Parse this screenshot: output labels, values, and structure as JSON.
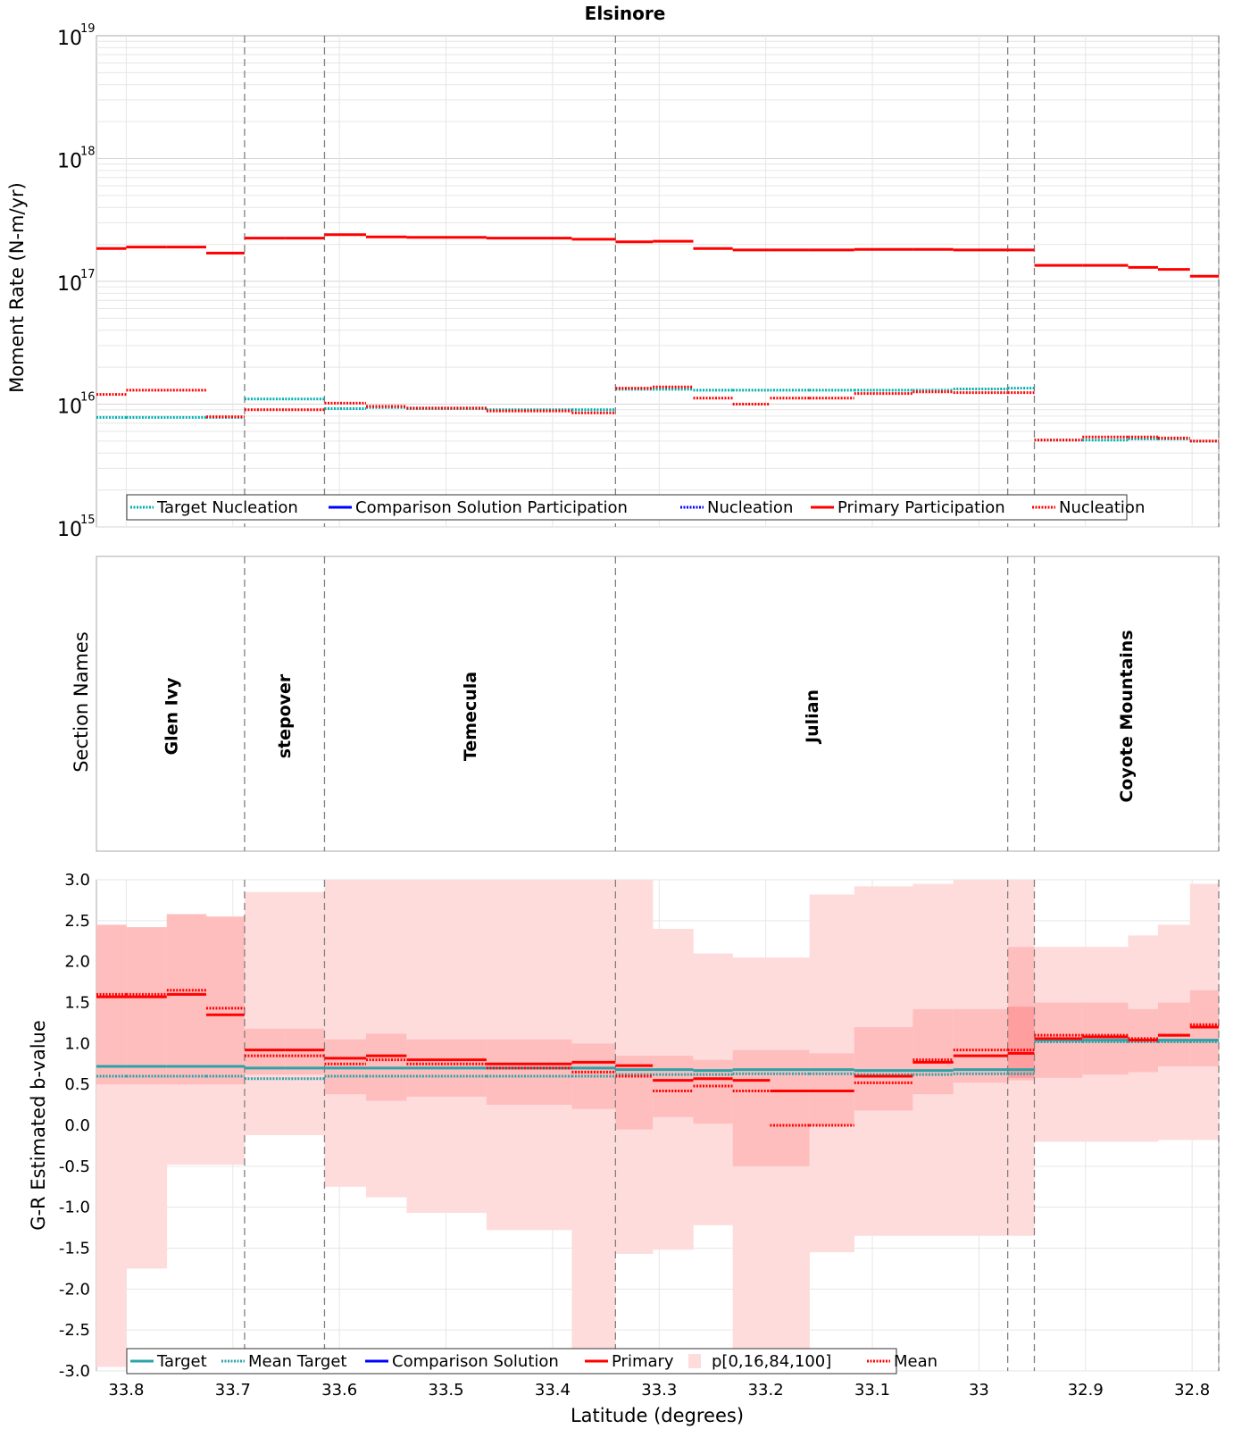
{
  "chart_data": [
    {
      "id": "moment",
      "type": "line",
      "title": "Elsinore",
      "ylabel": "Moment Rate (N-m/yr)",
      "yscale": "log",
      "ylim": [
        1000000000000000.0,
        1e+19
      ],
      "xlim": [
        33.828,
        32.775
      ],
      "y_ticks": [
        {
          "base": "10",
          "exp": "15",
          "value": 1000000000000000.0
        },
        {
          "base": "10",
          "exp": "16",
          "value": 1e+16
        },
        {
          "base": "10",
          "exp": "17",
          "value": 1e+17
        },
        {
          "base": "10",
          "exp": "18",
          "value": 1e+18
        },
        {
          "base": "10",
          "exp": "19",
          "value": 1e+19
        }
      ],
      "bin_edges": [
        33.828,
        33.8,
        33.762,
        33.725,
        33.689,
        33.651,
        33.614,
        33.575,
        33.537,
        33.462,
        33.382,
        33.341,
        33.306,
        33.268,
        33.231,
        33.196,
        33.159,
        33.117,
        33.062,
        33.024,
        32.973,
        32.948,
        32.903,
        32.86,
        32.832,
        32.802,
        32.775
      ],
      "series": [
        {
          "name": "Target Nucleation",
          "color": "#00b0b0",
          "style": "dotted",
          "values": [
            7800000000000000.0,
            7800000000000000.0,
            7800000000000000.0,
            7800000000000000.0,
            1.1e+16,
            1.1e+16,
            9200000000000000.0,
            9400000000000000.0,
            9200000000000000.0,
            9000000000000000.0,
            9000000000000000.0,
            1.32e+16,
            1.32e+16,
            1.3e+16,
            1.3e+16,
            1.3e+16,
            1.3e+16,
            1.3e+16,
            1.3e+16,
            1.33e+16,
            1.35e+16,
            5100000000000000.0,
            5100000000000000.0,
            5200000000000000.0,
            5200000000000000.0,
            5000000000000000.0
          ]
        },
        {
          "name": "Primary Participation",
          "color": "#ff0000",
          "style": "solid",
          "values": [
            1.85e+17,
            1.9e+17,
            1.9e+17,
            1.7e+17,
            2.25e+17,
            2.25e+17,
            2.4e+17,
            2.3e+17,
            2.28e+17,
            2.25e+17,
            2.2e+17,
            2.1e+17,
            2.12e+17,
            1.85e+17,
            1.8e+17,
            1.8e+17,
            1.8e+17,
            1.82e+17,
            1.82e+17,
            1.8e+17,
            1.8e+17,
            1.35e+17,
            1.35e+17,
            1.3e+17,
            1.25e+17,
            1.1e+17
          ]
        },
        {
          "name": "Nucleation",
          "color": "#ff0000",
          "style": "dotted",
          "values": [
            1.2e+16,
            1.3e+16,
            1.3e+16,
            7900000000000000.0,
            9000000000000000.0,
            9000000000000000.0,
            1.02e+16,
            9600000000000000.0,
            9300000000000000.0,
            8800000000000000.0,
            8500000000000000.0,
            1.35e+16,
            1.38e+16,
            1.12e+16,
            1e+16,
            1.12e+16,
            1.12e+16,
            1.22e+16,
            1.26e+16,
            1.24e+16,
            1.24e+16,
            5100000000000000.0,
            5400000000000000.0,
            5400000000000000.0,
            5300000000000000.0,
            5000000000000000.0
          ]
        }
      ],
      "legend": [
        "Target Nucleation",
        "Comparison Solution Participation",
        "Nucleation",
        "Primary Participation",
        "Nucleation"
      ],
      "legend_position": "bottom-left"
    },
    {
      "id": "sections",
      "type": "other",
      "ylabel": "Section Names",
      "section_boundaries": [
        33.689,
        33.614,
        33.341,
        32.973,
        32.948
      ],
      "sections": [
        {
          "name": "Glen Ivy",
          "center": 33.758
        },
        {
          "name": "stepover",
          "center": 33.652
        },
        {
          "name": "Temecula",
          "center": 33.478
        },
        {
          "name": "Julian",
          "center": 33.157
        },
        {
          "name": "Coyote Mountains",
          "center": 32.862
        }
      ]
    },
    {
      "id": "bvalue",
      "type": "line",
      "ylabel": "G-R Estimated b-value",
      "xlabel": "Latitude (degrees)",
      "ylim": [
        -3.0,
        3.0
      ],
      "xlim": [
        33.828,
        32.775
      ],
      "y_tick_labels": [
        "3.0",
        "2.5",
        "2.0",
        "1.5",
        "1.0",
        "0.5",
        "0.0",
        "-0.5",
        "-1.0",
        "-1.5",
        "-2.0",
        "-2.5",
        "-3.0"
      ],
      "x_tick_labels": [
        "33.8",
        "33.7",
        "33.6",
        "33.5",
        "33.4",
        "33.3",
        "33.2",
        "33.1",
        "33",
        "32.9",
        "32.8"
      ],
      "bin_edges": [
        33.828,
        33.8,
        33.762,
        33.725,
        33.689,
        33.651,
        33.614,
        33.575,
        33.537,
        33.462,
        33.382,
        33.341,
        33.306,
        33.268,
        33.231,
        33.196,
        33.159,
        33.117,
        33.062,
        33.024,
        32.973,
        32.948,
        32.903,
        32.86,
        32.832,
        32.802,
        32.775
      ],
      "p0": [
        -2.95,
        -1.75,
        -0.48,
        -0.48,
        -0.12,
        -0.12,
        -0.75,
        -0.88,
        -1.07,
        -1.28,
        -3.0,
        -1.57,
        -1.52,
        -1.22,
        -3.0,
        -3.0,
        -1.55,
        -1.35,
        -1.35,
        -1.35,
        -1.35,
        -0.2,
        -0.2,
        -0.2,
        -0.18,
        -0.18
      ],
      "p100": [
        2.45,
        2.42,
        2.58,
        2.55,
        2.85,
        2.85,
        3.0,
        3.0,
        3.0,
        3.0,
        3.0,
        3.0,
        2.4,
        2.1,
        2.05,
        2.05,
        2.82,
        2.92,
        2.95,
        3.0,
        3.0,
        2.18,
        2.18,
        2.32,
        2.45,
        2.95
      ],
      "p16": [
        0.5,
        0.5,
        0.5,
        0.5,
        0.62,
        0.62,
        0.38,
        0.3,
        0.35,
        0.25,
        0.2,
        -0.05,
        0.1,
        0.02,
        -0.5,
        -0.5,
        0.0,
        0.18,
        0.38,
        0.52,
        0.55,
        0.58,
        0.62,
        0.65,
        0.72,
        0.72
      ],
      "p84": [
        2.45,
        2.42,
        2.58,
        2.55,
        1.18,
        1.18,
        1.05,
        1.12,
        1.05,
        1.05,
        1.0,
        0.85,
        0.85,
        0.8,
        0.92,
        0.92,
        0.88,
        1.2,
        1.42,
        1.42,
        2.18,
        1.5,
        1.5,
        1.42,
        1.5,
        1.65
      ],
      "p16_overlay": [
        null,
        null,
        null,
        null,
        null,
        null,
        null,
        null,
        null,
        null,
        null,
        null,
        null,
        null,
        null,
        null,
        null,
        null,
        null,
        null,
        0.58,
        null,
        null,
        null,
        null,
        null
      ],
      "p84_overlay": [
        null,
        null,
        null,
        null,
        null,
        null,
        null,
        null,
        null,
        null,
        null,
        null,
        null,
        null,
        null,
        null,
        null,
        null,
        null,
        null,
        1.45,
        null,
        null,
        null,
        null,
        null
      ],
      "series": [
        {
          "name": "Target",
          "color": "#2aa3a8",
          "style": "solid",
          "values": [
            0.72,
            0.72,
            0.72,
            0.72,
            0.7,
            0.7,
            0.7,
            0.7,
            0.7,
            0.7,
            0.7,
            0.68,
            0.68,
            0.67,
            0.68,
            0.68,
            0.68,
            0.67,
            0.67,
            0.68,
            0.68,
            1.04,
            1.04,
            1.04,
            1.04,
            1.04
          ]
        },
        {
          "name": "Mean Target",
          "color": "#2aa3a8",
          "style": "dotted",
          "values": [
            0.6,
            0.6,
            0.6,
            0.6,
            0.57,
            0.57,
            0.6,
            0.6,
            0.6,
            0.6,
            0.6,
            0.62,
            0.62,
            0.62,
            0.63,
            0.63,
            0.63,
            0.62,
            0.62,
            0.63,
            0.63,
            1.02,
            1.02,
            1.02,
            1.02,
            1.02
          ]
        },
        {
          "name": "Primary",
          "color": "#ff0000",
          "style": "solid",
          "values": [
            1.57,
            1.57,
            1.6,
            1.35,
            0.92,
            0.92,
            0.82,
            0.85,
            0.8,
            0.75,
            0.77,
            0.73,
            0.55,
            0.57,
            0.55,
            0.42,
            0.42,
            0.6,
            0.77,
            0.85,
            0.88,
            1.06,
            1.08,
            1.04,
            1.1,
            1.2
          ]
        },
        {
          "name": "Mean",
          "color": "#ff0000",
          "style": "dotted",
          "values": [
            1.6,
            1.6,
            1.65,
            1.43,
            0.85,
            0.85,
            0.75,
            0.8,
            0.75,
            0.7,
            0.65,
            0.6,
            0.42,
            0.48,
            0.42,
            0.0,
            0.0,
            0.52,
            0.8,
            0.92,
            0.92,
            1.1,
            1.1,
            1.06,
            1.1,
            1.23
          ]
        }
      ],
      "legend": [
        "Target",
        "Mean Target",
        "Comparison Solution",
        "Primary",
        "p[0,16,84,100]",
        "Mean"
      ],
      "legend_position": "bottom-left"
    }
  ],
  "colors": {
    "frame": "#a8a8a8",
    "grid": "#e6e6e6",
    "boundary": "#808080",
    "p_outer": "#ffdcdc",
    "p_inner": "#ffbebe",
    "p_overlay": "#ff9e9e",
    "comparison_blue": "#0000ff"
  }
}
